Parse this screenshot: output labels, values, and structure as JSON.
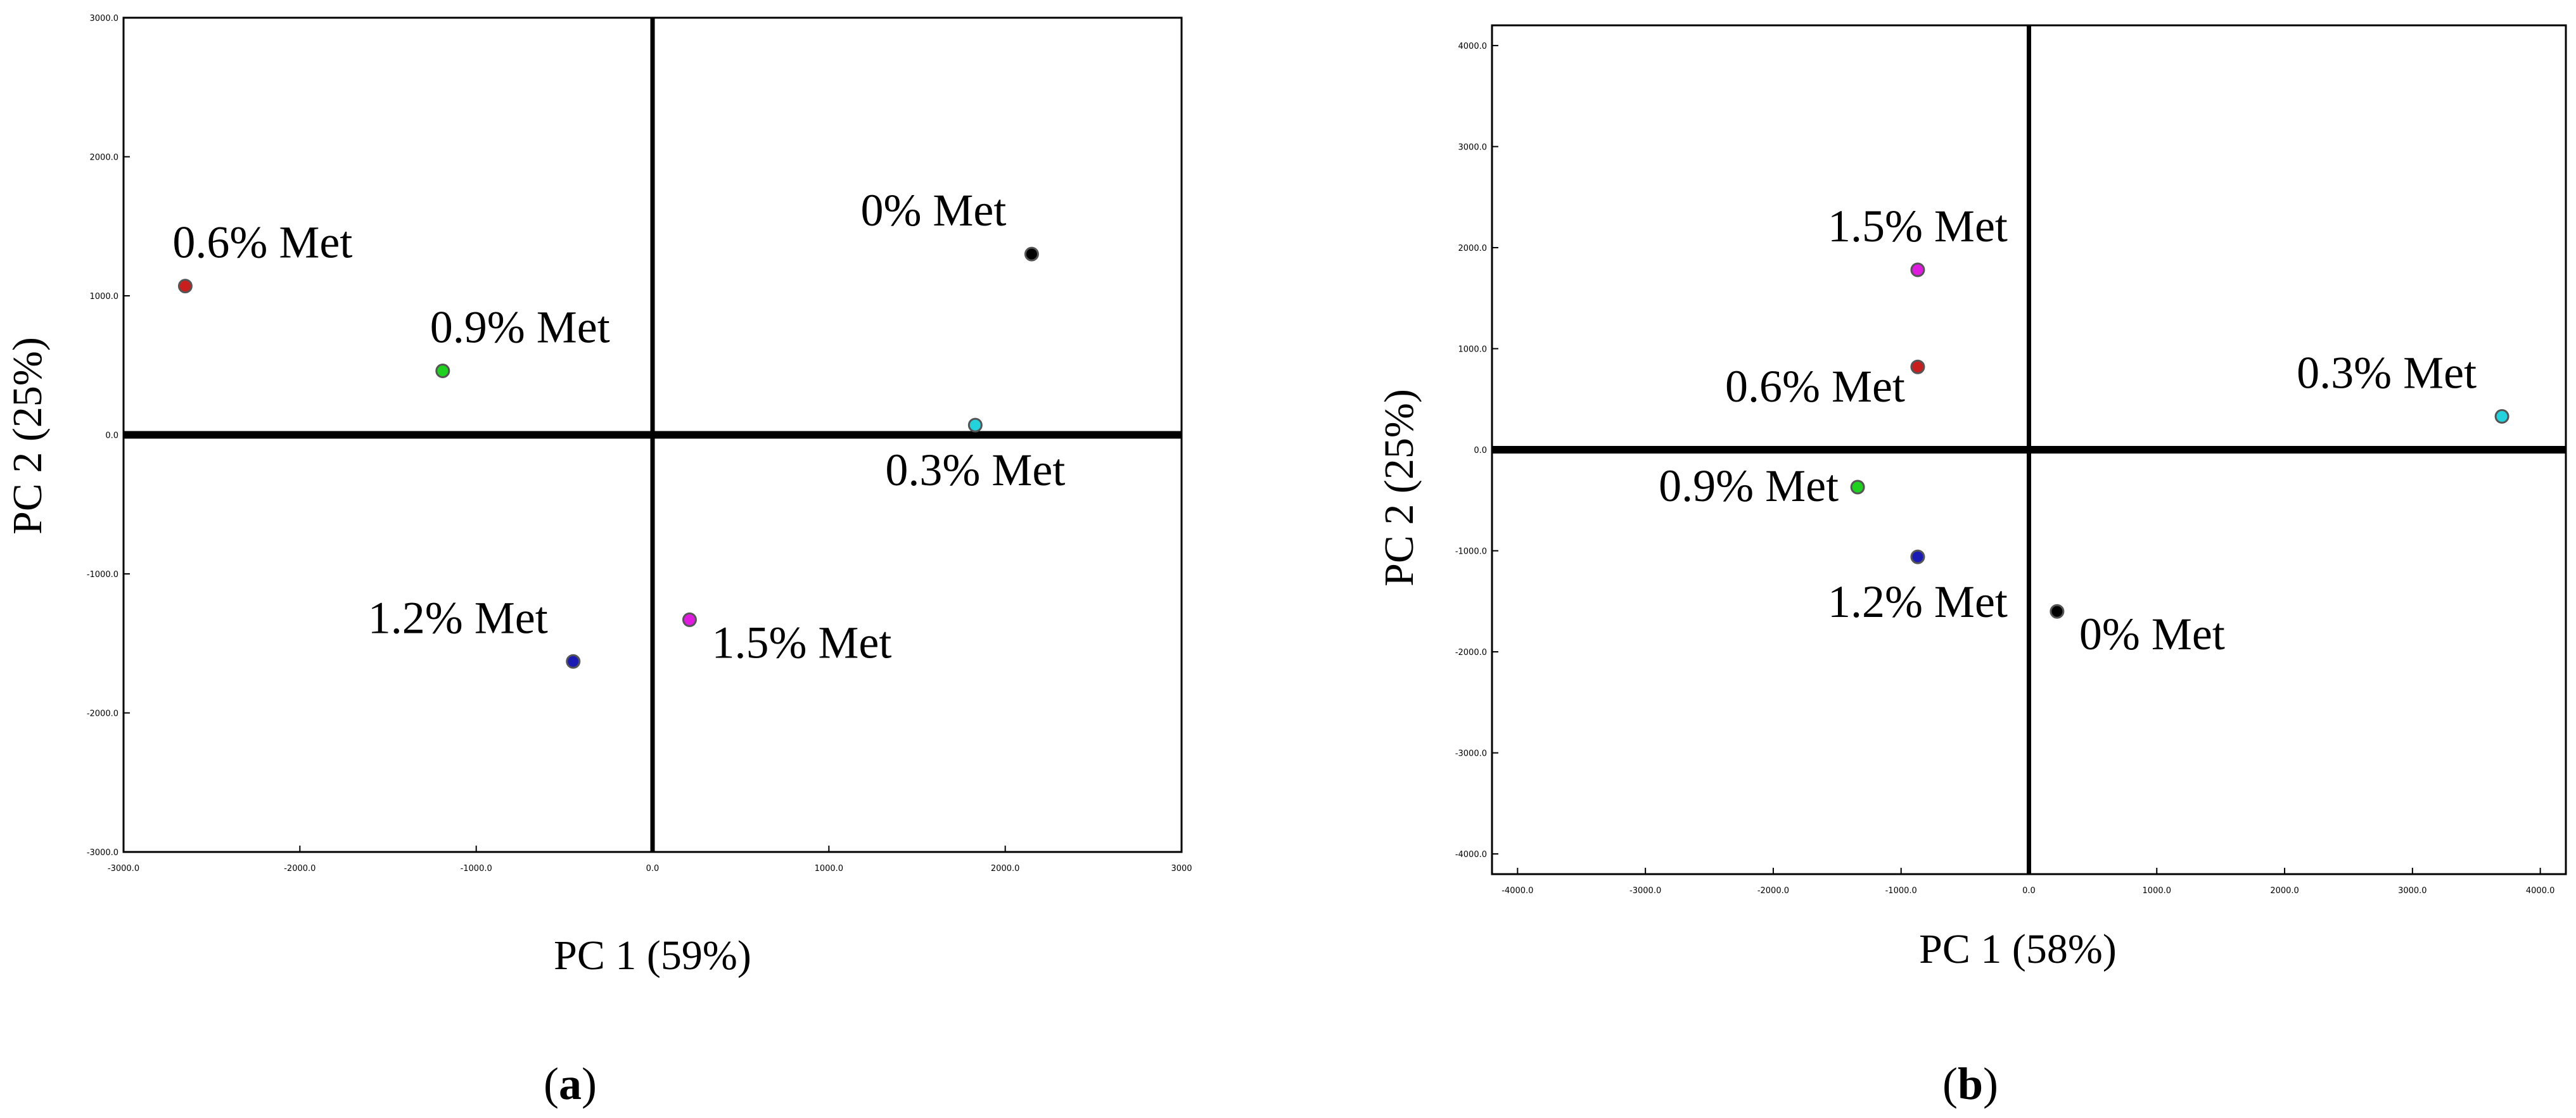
{
  "chart_data": [
    {
      "type": "scatter",
      "panel_label": "a",
      "xlabel": "PC 1 (59%)",
      "ylabel": "PC 2 (25%)",
      "xlim": [
        -3000,
        3000
      ],
      "ylim": [
        -3000,
        3000
      ],
      "x_ticks": [
        -3000,
        -2000,
        -1000,
        0,
        1000,
        2000,
        3000
      ],
      "y_ticks": [
        -3000,
        -2000,
        -1000,
        0,
        1000,
        2000,
        3000
      ],
      "x_tick_labels": [
        "-3000.0",
        "-2000.0",
        "-1000.0",
        "0.0",
        "1000.0",
        "2000.0",
        "3000"
      ],
      "y_tick_labels": [
        "-3000.0",
        "-2000.0",
        "-1000.0",
        "0.0",
        "1000.0",
        "2000.0",
        "3000.0"
      ],
      "grid": false,
      "points": [
        {
          "label": "0% Met",
          "x": 2150,
          "y": 1300,
          "color": "#000000",
          "label_pos": "above-left"
        },
        {
          "label": "0.3% Met",
          "x": 1830,
          "y": 70,
          "color": "#22d3de",
          "label_pos": "below"
        },
        {
          "label": "0.6% Met",
          "x": -2650,
          "y": 1070,
          "color": "#c81e1e",
          "label_pos": "above-right"
        },
        {
          "label": "0.9% Met",
          "x": -1190,
          "y": 460,
          "color": "#1fd11f",
          "label_pos": "above-right"
        },
        {
          "label": "1.2% Met",
          "x": -450,
          "y": -1630,
          "color": "#1a1ab4",
          "label_pos": "above-left"
        },
        {
          "label": "1.5% Met",
          "x": 210,
          "y": -1330,
          "color": "#e01be0",
          "label_pos": "below-right"
        }
      ]
    },
    {
      "type": "scatter",
      "panel_label": "b",
      "xlabel": "PC 1 (58%)",
      "ylabel": "PC 2 (25%)",
      "xlim": [
        -4200,
        4200
      ],
      "ylim": [
        -4200,
        4200
      ],
      "x_ticks": [
        -4000,
        -3000,
        -2000,
        -1000,
        0,
        1000,
        2000,
        3000,
        4000
      ],
      "y_ticks": [
        -4000,
        -3000,
        -2000,
        -1000,
        0,
        1000,
        2000,
        3000,
        4000
      ],
      "x_tick_labels": [
        "-4000.0",
        "-3000.0",
        "-2000.0",
        "-1000.0",
        "0.0",
        "1000.0",
        "2000.0",
        "3000.0",
        "4000.0"
      ],
      "y_tick_labels": [
        "-4000.0",
        "-3000.0",
        "-2000.0",
        "-1000.0",
        "0.0",
        "1000.0",
        "2000.0",
        "3000.0",
        "4000.0"
      ],
      "grid": false,
      "points": [
        {
          "label": "0% Met",
          "x": 220,
          "y": -1600,
          "color": "#000000",
          "label_pos": "below-right"
        },
        {
          "label": "0.3% Met",
          "x": 3700,
          "y": 330,
          "color": "#22d3de",
          "label_pos": "above-left"
        },
        {
          "label": "0.6% Met",
          "x": -870,
          "y": 820,
          "color": "#c81e1e",
          "label_pos": "below-left"
        },
        {
          "label": "0.9% Met",
          "x": -1340,
          "y": -370,
          "color": "#1fd11f",
          "label_pos": "left"
        },
        {
          "label": "1.2% Met",
          "x": -870,
          "y": -1060,
          "color": "#1a1ab4",
          "label_pos": "below"
        },
        {
          "label": "1.5% Met",
          "x": -870,
          "y": 1780,
          "color": "#e01be0",
          "label_pos": "above"
        }
      ]
    }
  ]
}
